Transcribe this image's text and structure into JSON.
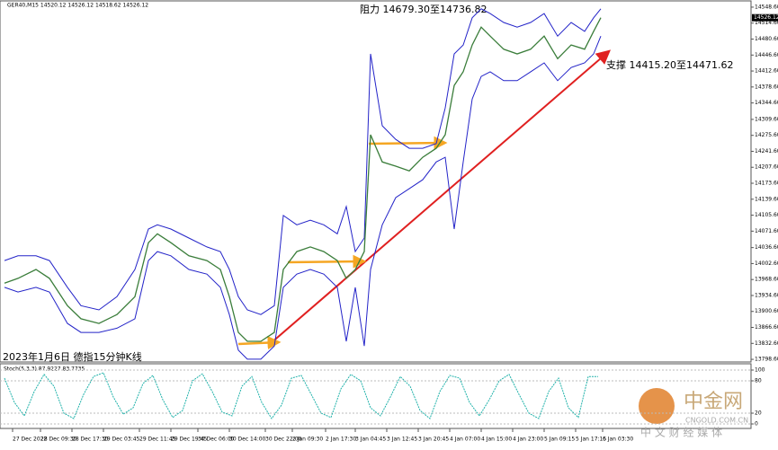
{
  "chart_data": [
    {
      "type": "line",
      "title": "GER40,M15  14520.12 14526.12 14518.62 14526.12",
      "caption": "2023年1月6日 德指15分钟K线",
      "annotations": [
        "阻力 14679.30至14736.82",
        "支撑 14415.20至14471.62"
      ],
      "last_price": 14526.12,
      "x": [
        5,
        20,
        40,
        55,
        75,
        90,
        110,
        130,
        150,
        165,
        175,
        190,
        210,
        230,
        245,
        255,
        265,
        275,
        290,
        305,
        315,
        330,
        345,
        360,
        375,
        385,
        395,
        405,
        412,
        425,
        440,
        455,
        470,
        485,
        495,
        505,
        515,
        525,
        535,
        545,
        560,
        575,
        590,
        605,
        620,
        635,
        650,
        660,
        668
      ],
      "series": [
        {
          "color": "#3a7d3a",
          "values": [
            13961,
            13971,
            13990,
            13971,
            13913,
            13885,
            13875,
            13894,
            13932,
            14047,
            14066,
            14047,
            14019,
            14009,
            13990,
            13932,
            13856,
            13837,
            13837,
            13856,
            13990,
            14028,
            14038,
            14028,
            14009,
            13971,
            13990,
            14028,
            14277,
            14219,
            14210,
            14200,
            14229,
            14248,
            14277,
            14382,
            14411,
            14468,
            14506,
            14487,
            14459,
            14449,
            14459,
            14487,
            14439,
            14468,
            14459,
            14497,
            14526.12
          ]
        },
        {
          "color": "#2323c8",
          "values": [
            14009,
            14019,
            14019,
            14009,
            13952,
            13913,
            13904,
            13932,
            13990,
            14076,
            14085,
            14076,
            14057,
            14038,
            14028,
            13990,
            13932,
            13904,
            13894,
            13913,
            14105,
            14085,
            14095,
            14085,
            14066,
            14124,
            14028,
            14057,
            14449,
            14296,
            14267,
            14248,
            14248,
            14258,
            14334,
            14449,
            14468,
            14526,
            14545,
            14535,
            14516,
            14506,
            14516,
            14535,
            14487,
            14516,
            14497,
            14526,
            14545
          ]
        },
        {
          "color": "#2323c8",
          "values": [
            13952,
            13942,
            13952,
            13942,
            13875,
            13856,
            13856,
            13865,
            13885,
            14009,
            14028,
            14019,
            13990,
            13980,
            13952,
            13894,
            13818,
            13799,
            13799,
            13827,
            13952,
            13980,
            13990,
            13980,
            13952,
            13837,
            13952,
            13827,
            13990,
            14085,
            14143,
            14162,
            14181,
            14219,
            14229,
            14076,
            14219,
            14353,
            14401,
            14411,
            14392,
            14392,
            14411,
            14430,
            14392,
            14420,
            14430,
            14449,
            14487
          ]
        }
      ],
      "xlim": [
        0,
        835
      ],
      "xticks": [
        {
          "value": 14,
          "label": "27 Dec 2022"
        },
        {
          "value": 45,
          "label": "28 Dec 09:30"
        },
        {
          "value": 80,
          "label": "28 Dec 17:30"
        },
        {
          "value": 115,
          "label": "29 Dec 03:45"
        },
        {
          "value": 155,
          "label": "29 Dec 11:45"
        },
        {
          "value": 190,
          "label": "29 Dec 19:45"
        },
        {
          "value": 220,
          "label": "30 Dec 06:00"
        },
        {
          "value": 255,
          "label": "30 Dec 14:00"
        },
        {
          "value": 295,
          "label": "30 Dec 22:00"
        },
        {
          "value": 325,
          "label": "2 Jan 09:30"
        },
        {
          "value": 362,
          "label": "2 Jan 17:30"
        },
        {
          "value": 395,
          "label": "3 Jan 04:45"
        },
        {
          "value": 430,
          "label": "3 Jan 12:45"
        },
        {
          "value": 465,
          "label": "3 Jan 20:45"
        },
        {
          "value": 500,
          "label": "4 Jan 07:00"
        },
        {
          "value": 535,
          "label": "4 Jan 15:00"
        },
        {
          "value": 570,
          "label": "4 Jan 23:00"
        },
        {
          "value": 605,
          "label": "5 Jan 09:15"
        },
        {
          "value": 640,
          "label": "5 Jan 17:15"
        },
        {
          "value": 670,
          "label": "6 Jan 03:30"
        }
      ],
      "ylim": [
        13793,
        14560
      ],
      "yticks": [
        {
          "value": 14548.6,
          "label": "14548.60"
        },
        {
          "value": 14514.6,
          "label": "14514.60"
        },
        {
          "value": 14480.6,
          "label": "14480.60"
        },
        {
          "value": 14446.6,
          "label": "14446.60"
        },
        {
          "value": 14412.6,
          "label": "14412.60"
        },
        {
          "value": 14378.6,
          "label": "14378.60"
        },
        {
          "value": 14344.6,
          "label": "14344.60"
        },
        {
          "value": 14309.6,
          "label": "14309.60"
        },
        {
          "value": 14275.6,
          "label": "14275.60"
        },
        {
          "value": 14241.6,
          "label": "14241.60"
        },
        {
          "value": 14207.6,
          "label": "14207.60"
        },
        {
          "value": 14173.6,
          "label": "14173.60"
        },
        {
          "value": 14139.6,
          "label": "14139.60"
        },
        {
          "value": 14105.6,
          "label": "14105.60"
        },
        {
          "value": 14071.6,
          "label": "14071.60"
        },
        {
          "value": 14036.6,
          "label": "14036.60"
        },
        {
          "value": 14002.6,
          "label": "14002.60"
        },
        {
          "value": 13968.6,
          "label": "13968.60"
        },
        {
          "value": 13934.6,
          "label": "13934.60"
        },
        {
          "value": 13900.6,
          "label": "13900.60"
        },
        {
          "value": 13866.6,
          "label": "13866.60"
        },
        {
          "value": 13832.6,
          "label": "13832.60"
        },
        {
          "value": 13798.6,
          "label": "13798.60"
        }
      ]
    },
    {
      "type": "line",
      "title": "Stoch(5,3,3) 87.9227 83.7735",
      "color": "#20b2aa",
      "values": [
        85,
        40,
        15,
        60,
        92,
        70,
        20,
        10,
        55,
        88,
        95,
        50,
        18,
        30,
        75,
        90,
        45,
        12,
        25,
        80,
        93,
        60,
        22,
        15,
        70,
        88,
        40,
        10,
        35,
        85,
        90,
        55,
        20,
        12,
        65,
        92,
        80,
        30,
        15,
        50,
        88,
        70,
        25,
        10,
        60,
        90,
        85,
        40,
        15,
        45,
        80,
        92,
        55,
        20,
        10,
        60,
        85,
        30,
        12,
        88,
        88
      ],
      "ylim": [
        0,
        100
      ],
      "yticks": [
        0,
        20,
        80,
        100
      ]
    }
  ],
  "watermark": {
    "name": "中金网",
    "url": "CNGOLD.COM.CN",
    "tagline": "中 文 财 经 媒 体"
  }
}
